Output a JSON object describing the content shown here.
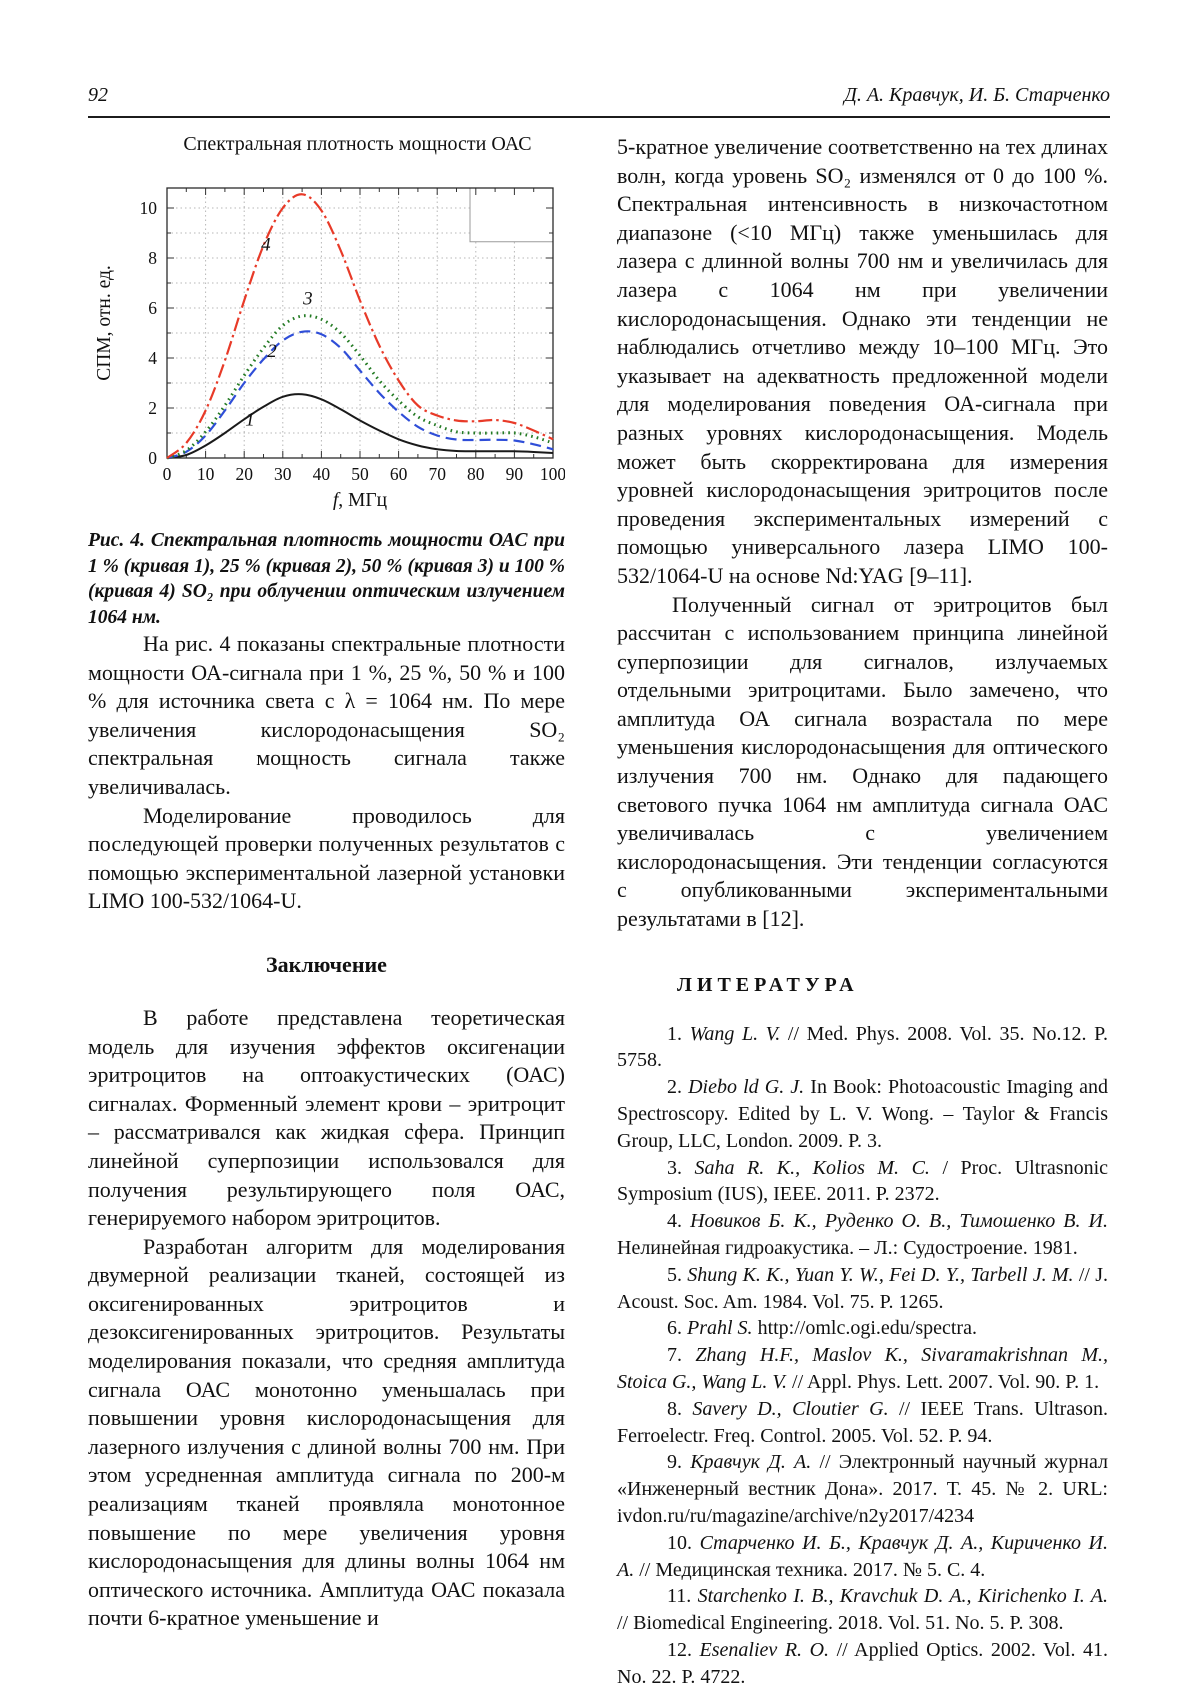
{
  "page": {
    "number": "92",
    "running_authors": "Д. А. Кравчук, И. Б. Старченко"
  },
  "figure": {
    "caption": "Рис. 4. Спектральная плотность мощности ОАС при 1 % (кривая 1), 25 % (кривая 2), 50 % (кривая 3) и 100 % (кривая 4) SO₂ при облучении оптическим излучением 1064 нм."
  },
  "chart_data": {
    "type": "line",
    "title": "Спектральная плотность мощности ОАС",
    "xlabel": "f, МГц",
    "ylabel": "СПМ, отн. ед.",
    "xlim": [
      0,
      100
    ],
    "ylim": [
      0,
      10.8
    ],
    "x_ticks": [
      0,
      10,
      20,
      30,
      40,
      50,
      60,
      70,
      80,
      90,
      100
    ],
    "y_ticks": [
      0,
      2,
      4,
      6,
      8,
      10
    ],
    "grid": "dotted",
    "legend_position": "top-right-empty-box",
    "legend_box": {
      "f0": 78.5,
      "f1": 100,
      "v0": 8.65,
      "v1": 10.8
    },
    "x": [
      0,
      5,
      10,
      15,
      20,
      25,
      30,
      35,
      40,
      45,
      50,
      55,
      60,
      65,
      70,
      75,
      80,
      85,
      90,
      95,
      100
    ],
    "series": [
      {
        "name": "1",
        "so2_level": "1 %",
        "color": "#1a1a1a",
        "style": "solid",
        "values": [
          0,
          0.12,
          0.5,
          1.0,
          1.55,
          2.05,
          2.45,
          2.55,
          2.35,
          1.95,
          1.5,
          1.1,
          0.75,
          0.5,
          0.35,
          0.28,
          0.27,
          0.27,
          0.27,
          0.24,
          0.2
        ],
        "label_at": [
          21.5,
          1.3
        ]
      },
      {
        "name": "2",
        "so2_level": "25 %",
        "color": "#2f4ed8",
        "style": "dashed",
        "values": [
          0,
          0.25,
          0.9,
          1.9,
          3.0,
          3.95,
          4.7,
          5.05,
          4.95,
          4.4,
          3.5,
          2.6,
          1.85,
          1.25,
          0.9,
          0.74,
          0.72,
          0.73,
          0.7,
          0.55,
          0.35
        ],
        "label_at": [
          27.2,
          4.05
        ]
      },
      {
        "name": "3",
        "so2_level": "50 %",
        "color": "#237a23",
        "style": "dotted",
        "values": [
          0,
          0.3,
          1.05,
          2.1,
          3.3,
          4.4,
          5.3,
          5.68,
          5.55,
          5.0,
          4.1,
          3.1,
          2.3,
          1.65,
          1.3,
          1.05,
          1.0,
          1.0,
          1.0,
          0.85,
          0.6
        ],
        "label_at": [
          36.5,
          6.15
        ]
      },
      {
        "name": "4",
        "so2_level": "100 %",
        "color": "#e83a28",
        "style": "dashdot",
        "values": [
          0,
          0.6,
          1.9,
          3.9,
          6.3,
          8.5,
          10.0,
          10.55,
          9.9,
          8.3,
          6.3,
          4.5,
          3.1,
          2.1,
          1.7,
          1.5,
          1.47,
          1.52,
          1.4,
          1.1,
          0.75
        ],
        "label_at": [
          25.6,
          8.3
        ]
      }
    ]
  },
  "left_column": {
    "paragraphs": [
      "На рис. 4 показаны спектральные плотности мощности ОА-сигнала при 1 %, 25 %, 50 % и 100 % для источника света с λ = 1064 нм. По мере увеличения кислородонасыщения SO₂ спектральная мощность сигнала также увеличивалась.",
      "Моделирование проводилось для последующей проверки полученных результатов с помощью экспериментальной лазерной установки LIMO 100-532/1064-U."
    ],
    "conclusion_heading": "Заключение",
    "conclusion_paragraphs": [
      "В работе представлена теоретическая модель для изучения эффектов оксигенации эритроцитов на оптоакустических (ОАС) сигналах. Форменный элемент крови – эритроцит – рассматривался как жидкая сфера. Принцип линейной суперпозиции использовался для получения результирующего поля ОАС, генерируемого набором эритроцитов.",
      "Разработан алгоритм для моделирования двумерной реализации тканей, состоящей из оксигенированных эритроцитов и дезоксигенированных эритроцитов. Результаты моделирования показали, что средняя амплитуда сигнала ОАС монотонно уменьшалась при повышении уровня кислородонасыщения для лазерного излучения с длиной волны 700 нм. При этом усредненная амплитуда сигнала по 200-м реализациям тканей проявляла монотонное повышение по мере увеличения уровня кислородонасыщения для длины волны 1064 нм оптического источника. Амплитуда ОАС показала почти 6-кратное уменьшение и"
    ]
  },
  "right_column": {
    "paragraphs": [
      "5-кратное увеличение соответственно на тех длинах волн, когда уровень SO₂ изменялся от 0 до 100 %. Спектральная интенсивность в низкочастотном диапазоне (<10 МГц) также уменьшилась для лазера с длинной волны 700 нм и увеличилась для лазера с 1064 нм при увеличении кислородонасыщения. Однако эти тенденции не наблюдались отчетливо между 10–100 МГц. Это указывает на адекватность предложенной модели для моделирования поведения ОА-сигнала при разных уровнях кислородонасыщения. Модель может быть скорректирована для измерения уровней кислородонасыщения эритроцитов после проведения экспериментальных измерений с помощью универсального лазера LIMO 100-532/1064-U на основе Nd:YAG [9–11].",
      "Полученный сигнал от эритроцитов был рассчитан с использованием принципа линейной суперпозиции для сигналов, излучаемых отдельными эритроцитами. Было замечено, что амплитуда ОА сигнала возрастала по мере уменьшения кислородонасыщения для оптического излучения 700 нм. Однако для падающего светового пучка 1064 нм амплитуда сигнала ОАС увеличивалась с увеличением кислородонасыщения. Эти тенденции согласуются с опубликованными экспериментальными результатами в [12]."
    ],
    "literature_heading": "ЛИТЕРАТУРА",
    "references": [
      {
        "num": "1. ",
        "authors": "Wang L. V.",
        "rest": " // Med. Phys. 2008. Vol. 35. No.12. P. 5758."
      },
      {
        "num": "2. ",
        "authors": "Diebo ld G. J.",
        "rest": " In Book: Photoacoustic Imaging and Spectroscopy. Edited by L. V. Wong. – Taylor & Francis Group, LLC, London. 2009. P. 3."
      },
      {
        "num": "3. ",
        "authors": "Saha R. K., Kolios M. C.",
        "rest": " / Proc. Ultrasnonic Symposium (IUS), IEEE. 2011. P. 2372."
      },
      {
        "num": "4. ",
        "authors": "Новиков Б. К., Руденко О. В., Тимошенко В. И.",
        "rest": " Нелинейная гидроакустика. – Л.: Судостроение. 1981."
      },
      {
        "num": "5. ",
        "authors": "Shung K. K., Yuan Y. W., Fei D. Y., Tarbell J. M.",
        "rest": " // J. Acoust. Soc. Am. 1984. Vol. 75. P. 1265."
      },
      {
        "num": "6. ",
        "authors": "Prahl S.",
        "rest": " http://omlc.ogi.edu/spectra."
      },
      {
        "num": "7. ",
        "authors": "Zhang H.F., Maslov K., Sivaramakrishnan M., Stoica G., Wang L. V.",
        "rest": " // Appl. Phys. Lett. 2007. Vol. 90. P. 1."
      },
      {
        "num": "8. ",
        "authors": "Savery D., Cloutier G.",
        "rest": " // IEEE Trans. Ultrason. Ferroelectr. Freq. Control. 2005. Vol. 52. P. 94."
      },
      {
        "num": "9. ",
        "authors": "Кравчук Д. А.",
        "rest": " // Электронный научный журнал «Инженерный вестник Дона». 2017. Т. 45. № 2. URL: ivdon.ru/ru/magazine/archive/n2y2017/4234"
      },
      {
        "num": "10. ",
        "authors": "Старченко И. Б., Кравчук Д. А., Кириченко И. А.",
        "rest": " // Медицинская техника. 2017. № 5. С. 4."
      },
      {
        "num": "11. ",
        "authors": "Starchenko I. B., Kravchuk D. A., Kirichenko I. A.",
        "rest": " // Biomedical Engineering. 2018. Vol. 51. No. 5. P. 308."
      },
      {
        "num": "12. ",
        "authors": "Esenaliev R. O.",
        "rest": " // Applied Optics. 2002. Vol. 41. No. 22. P. 4722."
      }
    ]
  }
}
